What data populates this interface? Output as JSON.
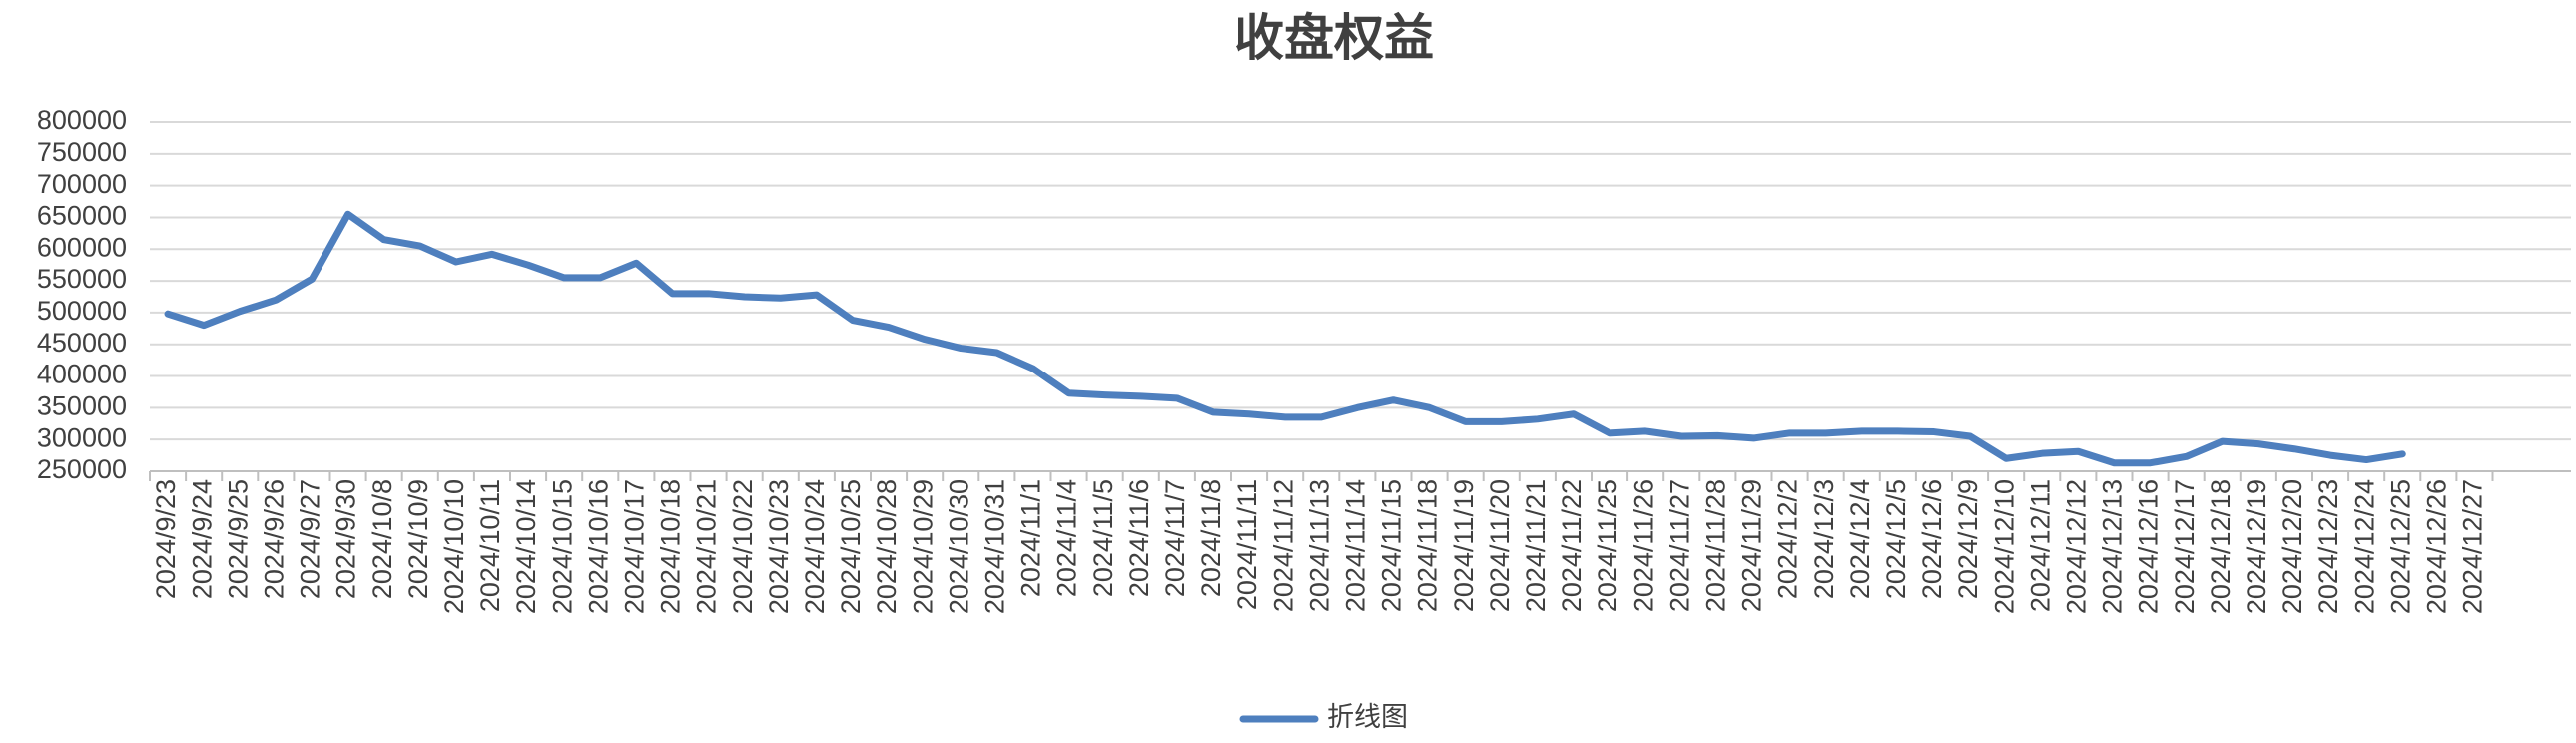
{
  "chart_data": {
    "type": "line",
    "title": "收盘权益",
    "categories": [
      "2024/9/23",
      "2024/9/24",
      "2024/9/25",
      "2024/9/26",
      "2024/9/27",
      "2024/9/30",
      "2024/10/8",
      "2024/10/9",
      "2024/10/10",
      "2024/10/11",
      "2024/10/14",
      "2024/10/15",
      "2024/10/16",
      "2024/10/17",
      "2024/10/18",
      "2024/10/21",
      "2024/10/22",
      "2024/10/23",
      "2024/10/24",
      "2024/10/25",
      "2024/10/28",
      "2024/10/29",
      "2024/10/30",
      "2024/10/31",
      "2024/11/1",
      "2024/11/4",
      "2024/11/5",
      "2024/11/6",
      "2024/11/7",
      "2024/11/8",
      "2024/11/11",
      "2024/11/12",
      "2024/11/13",
      "2024/11/14",
      "2024/11/15",
      "2024/11/18",
      "2024/11/19",
      "2024/11/20",
      "2024/11/21",
      "2024/11/22",
      "2024/11/25",
      "2024/11/26",
      "2024/11/27",
      "2024/11/28",
      "2024/11/29",
      "2024/12/2",
      "2024/12/3",
      "2024/12/4",
      "2024/12/5",
      "2024/12/6",
      "2024/12/9",
      "2024/12/10",
      "2024/12/11",
      "2024/12/12",
      "2024/12/13",
      "2024/12/16",
      "2024/12/17",
      "2024/12/18",
      "2024/12/19",
      "2024/12/20",
      "2024/12/23",
      "2024/12/24",
      "2024/12/25",
      "2024/12/26",
      "2024/12/27"
    ],
    "series": [
      {
        "name": "折线图",
        "color": "#4e7fbe",
        "values": [
          498000,
          480000,
          502000,
          520000,
          553000,
          655000,
          615000,
          605000,
          580000,
          592000,
          575000,
          555000,
          555000,
          578000,
          530000,
          530000,
          525000,
          523000,
          528000,
          488000,
          477000,
          458000,
          444000,
          437000,
          412000,
          373000,
          370000,
          368000,
          365000,
          343000,
          340000,
          335000,
          335000,
          350000,
          362000,
          350000,
          328000,
          328000,
          332000,
          340000,
          310000,
          313000,
          305000,
          306000,
          302000,
          310000,
          310000,
          313000,
          313000,
          312000,
          305000,
          270000,
          278000,
          281000,
          263000,
          263000,
          273000,
          297000,
          293000,
          285000,
          275000,
          268000,
          277000,
          null,
          null
        ]
      }
    ],
    "ylim": [
      250000,
      800000
    ],
    "yticks": [
      250000,
      300000,
      350000,
      400000,
      450000,
      500000,
      550000,
      600000,
      650000,
      700000,
      750000,
      800000
    ],
    "grid": true,
    "legend": "bottom"
  }
}
